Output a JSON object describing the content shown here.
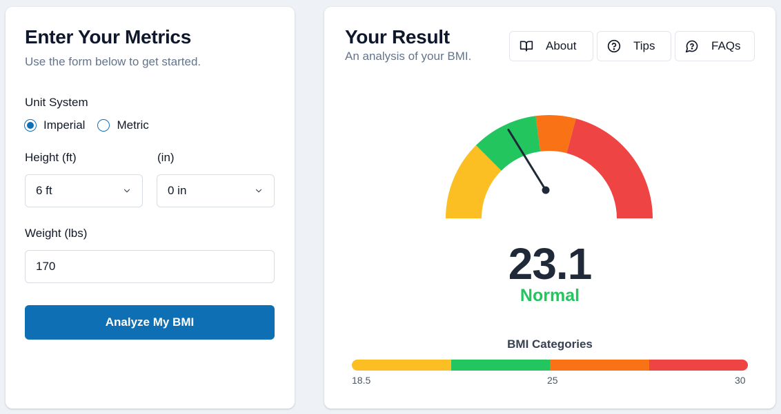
{
  "form": {
    "title": "Enter Your Metrics",
    "subtitle": "Use the form below to get started.",
    "unit_label": "Unit System",
    "units": [
      {
        "label": "Imperial",
        "checked": true
      },
      {
        "label": "Metric",
        "checked": false
      }
    ],
    "height_ft_label": "Height (ft)",
    "height_in_label": "(in)",
    "height_ft_value": "6 ft",
    "height_in_value": "0 in",
    "weight_label": "Weight (lbs)",
    "weight_value": "170",
    "submit_label": "Analyze My BMI"
  },
  "result": {
    "title": "Your Result",
    "subtitle": "An analysis of your BMI.",
    "nav": {
      "about": "About",
      "tips": "Tips",
      "faqs": "FAQs"
    },
    "bmi_value": "23.1",
    "bmi_numeric": 23.1,
    "category": "Normal",
    "categories_title": "BMI Categories",
    "ticks": [
      "18.5",
      "25",
      "30"
    ]
  },
  "colors": {
    "primary": "#0e6fb5",
    "underweight": "#fbbf24",
    "normal": "#22c55e",
    "overweight": "#f97316",
    "obese": "#ef4444"
  },
  "icons": {
    "about": "book-open-icon",
    "tips": "help-circle-icon",
    "faqs": "message-circle-question-icon",
    "select": "chevron-down-icon"
  }
}
